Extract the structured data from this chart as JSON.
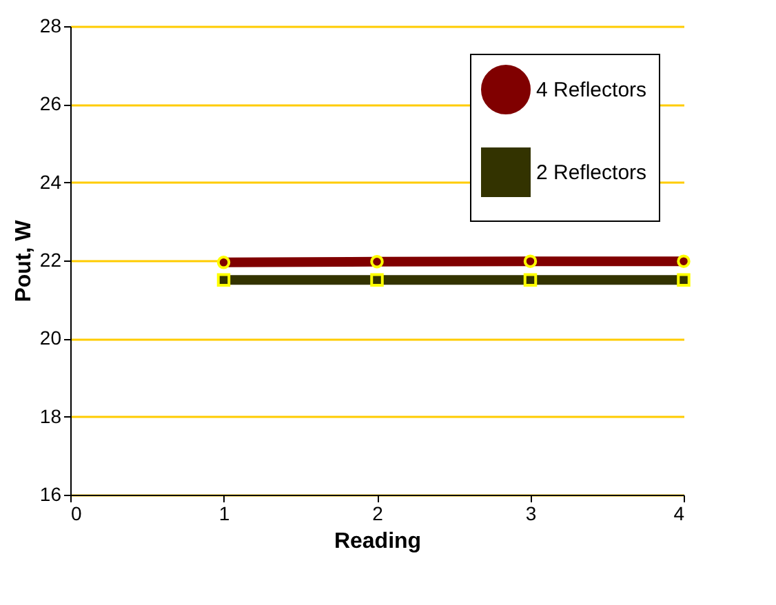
{
  "chart_data": {
    "type": "line",
    "xlabel": "Reading",
    "ylabel": "Pout, W",
    "x": [
      1,
      2,
      3,
      4
    ],
    "xlim": [
      0,
      4
    ],
    "xticks": [
      0,
      1,
      2,
      3,
      4
    ],
    "ylim": [
      16,
      28
    ],
    "yticks": [
      16,
      18,
      20,
      22,
      24,
      26,
      28
    ],
    "grid": "y",
    "legend": "top right",
    "series": [
      {
        "name": "4 Reflectors",
        "color": "#800000",
        "marker": "circle",
        "values": [
          21.95,
          21.97,
          21.98,
          21.98
        ]
      },
      {
        "name": "2 Reflectors",
        "color": "#333300",
        "marker": "square",
        "values": [
          21.5,
          21.5,
          21.5,
          21.5
        ]
      }
    ]
  }
}
